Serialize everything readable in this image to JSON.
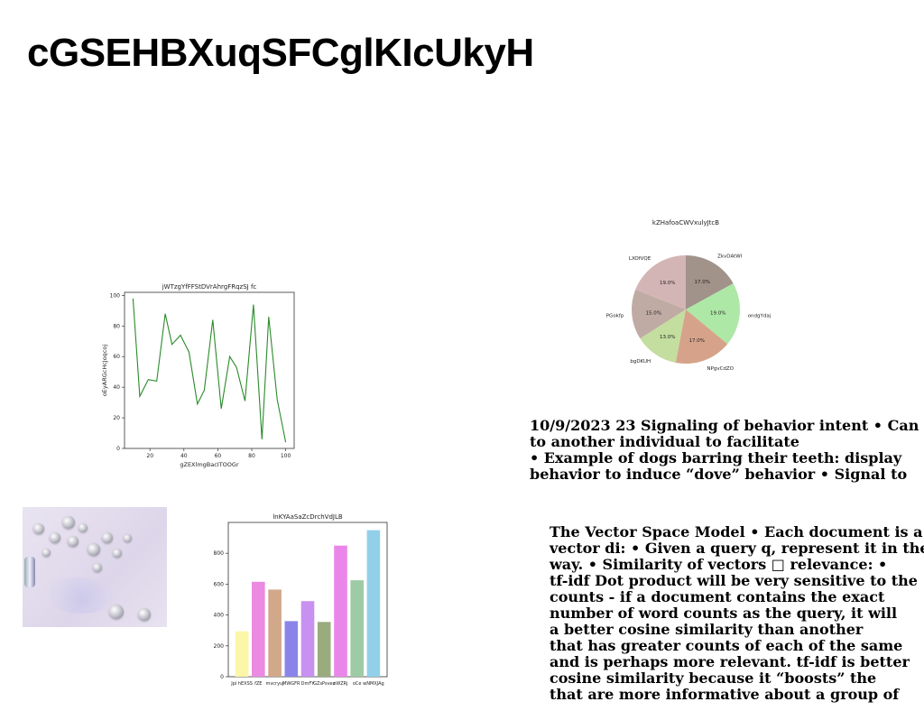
{
  "page": {
    "title": "cGSEHBXuqSFCglKIcUkyH"
  },
  "line_chart": {
    "title": "jWTzgYfFFStDVrAhrgFRqzSJ fc",
    "xlabel": "gZEXlmgBacITOOGr",
    "ylabel": "oEyARGcHcJoqcoj",
    "color": "#2a8a2a"
  },
  "pie_chart": {
    "title": "kZHafoaCWVxulyJtcB"
  },
  "bar_chart": {
    "title": "lnKYAaSaZcDrchVdJLB"
  },
  "photo": {
    "icon": "disco-balls-photo"
  },
  "text_block_1": {
    "lines": [
      "10/9/2023 23 Signaling of behavior intent • Can",
      "to another individual to facilitate",
      "• Example of dogs barring their teeth: display",
      "behavior to induce “dove” behavior • Signal to"
    ]
  },
  "text_block_2": {
    "lines": [
      "The Vector Space Model • Each document is a",
      "vector di: • Given a query q, represent it in the",
      "way. • Similarity of vectors □ relevance: •",
      " tf-idf Dot product will be very sensitive to the",
      "counts - if a document contains the exact",
      "number of word counts as the query, it will",
      "a better cosine similarity than another",
      "that has greater counts of each of the same",
      "and is perhaps more relevant. tf-idf is better",
      "cosine similarity because it “boosts” the",
      "that are more informative about a group of"
    ]
  },
  "chart_data": [
    {
      "type": "line",
      "title": "jWTzgYfFFStDVrAhrgFRqzSJ fc",
      "xlabel": "gZEXlmgBacITOOGr",
      "ylabel": "oEyARGcHcJoqcoj",
      "x": [
        10,
        14,
        19,
        24,
        29,
        33,
        38,
        43,
        48,
        52,
        57,
        62,
        67,
        71,
        76,
        81,
        86,
        90,
        95,
        100
      ],
      "y": [
        98,
        34,
        45,
        44,
        88,
        68,
        74,
        63,
        29,
        38,
        84,
        26,
        60,
        53,
        31,
        94,
        6,
        86,
        32,
        4
      ],
      "xlim": [
        5,
        105
      ],
      "ylim": [
        0,
        102
      ],
      "xticks": [
        0,
        20,
        40,
        60,
        80,
        100
      ],
      "yticks": [
        0,
        20,
        40,
        60,
        80,
        100
      ],
      "grid": false
    },
    {
      "type": "pie",
      "title": "kZHafoaCWVxulyJtcB",
      "slices": [
        {
          "label": "ZkvDAtWI",
          "value": 17.0,
          "pct": "17.0%",
          "color": "#a1928a"
        },
        {
          "label": "ondgYdaj",
          "value": 19.0,
          "pct": "19.0%",
          "color": "#ade8a6"
        },
        {
          "label": "NPgvCdZO",
          "value": 17.0,
          "pct": "17.0%",
          "color": "#d6a38a"
        },
        {
          "label": "bgDKUH",
          "value": 13.0,
          "pct": "13.0%",
          "color": "#c3de9e"
        },
        {
          "label": "PGokfp",
          "value": 15.0,
          "pct": "15.0%",
          "color": "#bfaba3"
        },
        {
          "label": "LXOfVQE",
          "value": 19.0,
          "pct": "19.0%",
          "color": "#d4b5b5"
        }
      ]
    },
    {
      "type": "bar",
      "title": "lnKYAaSaZcDrchVdJLB",
      "categories": [
        "Jpi hEXSS",
        "fZE",
        "mvcryuJ",
        "MWGFR",
        "DmFY",
        "GZsPsvez",
        "eWZRj",
        "oCe",
        "wNMXJAg"
      ],
      "values": [
        295,
        615,
        565,
        360,
        490,
        355,
        850,
        625,
        950
      ],
      "colors": [
        "#fbf6a8",
        "#ea8ae0",
        "#d2a88a",
        "#8a84ea",
        "#c890f0",
        "#9aac7e",
        "#ea86ea",
        "#9ecaa6",
        "#92d0ea"
      ],
      "ylim": [
        0,
        1000
      ],
      "yticks": [
        0,
        200,
        400,
        600,
        800
      ],
      "grid": false
    }
  ]
}
